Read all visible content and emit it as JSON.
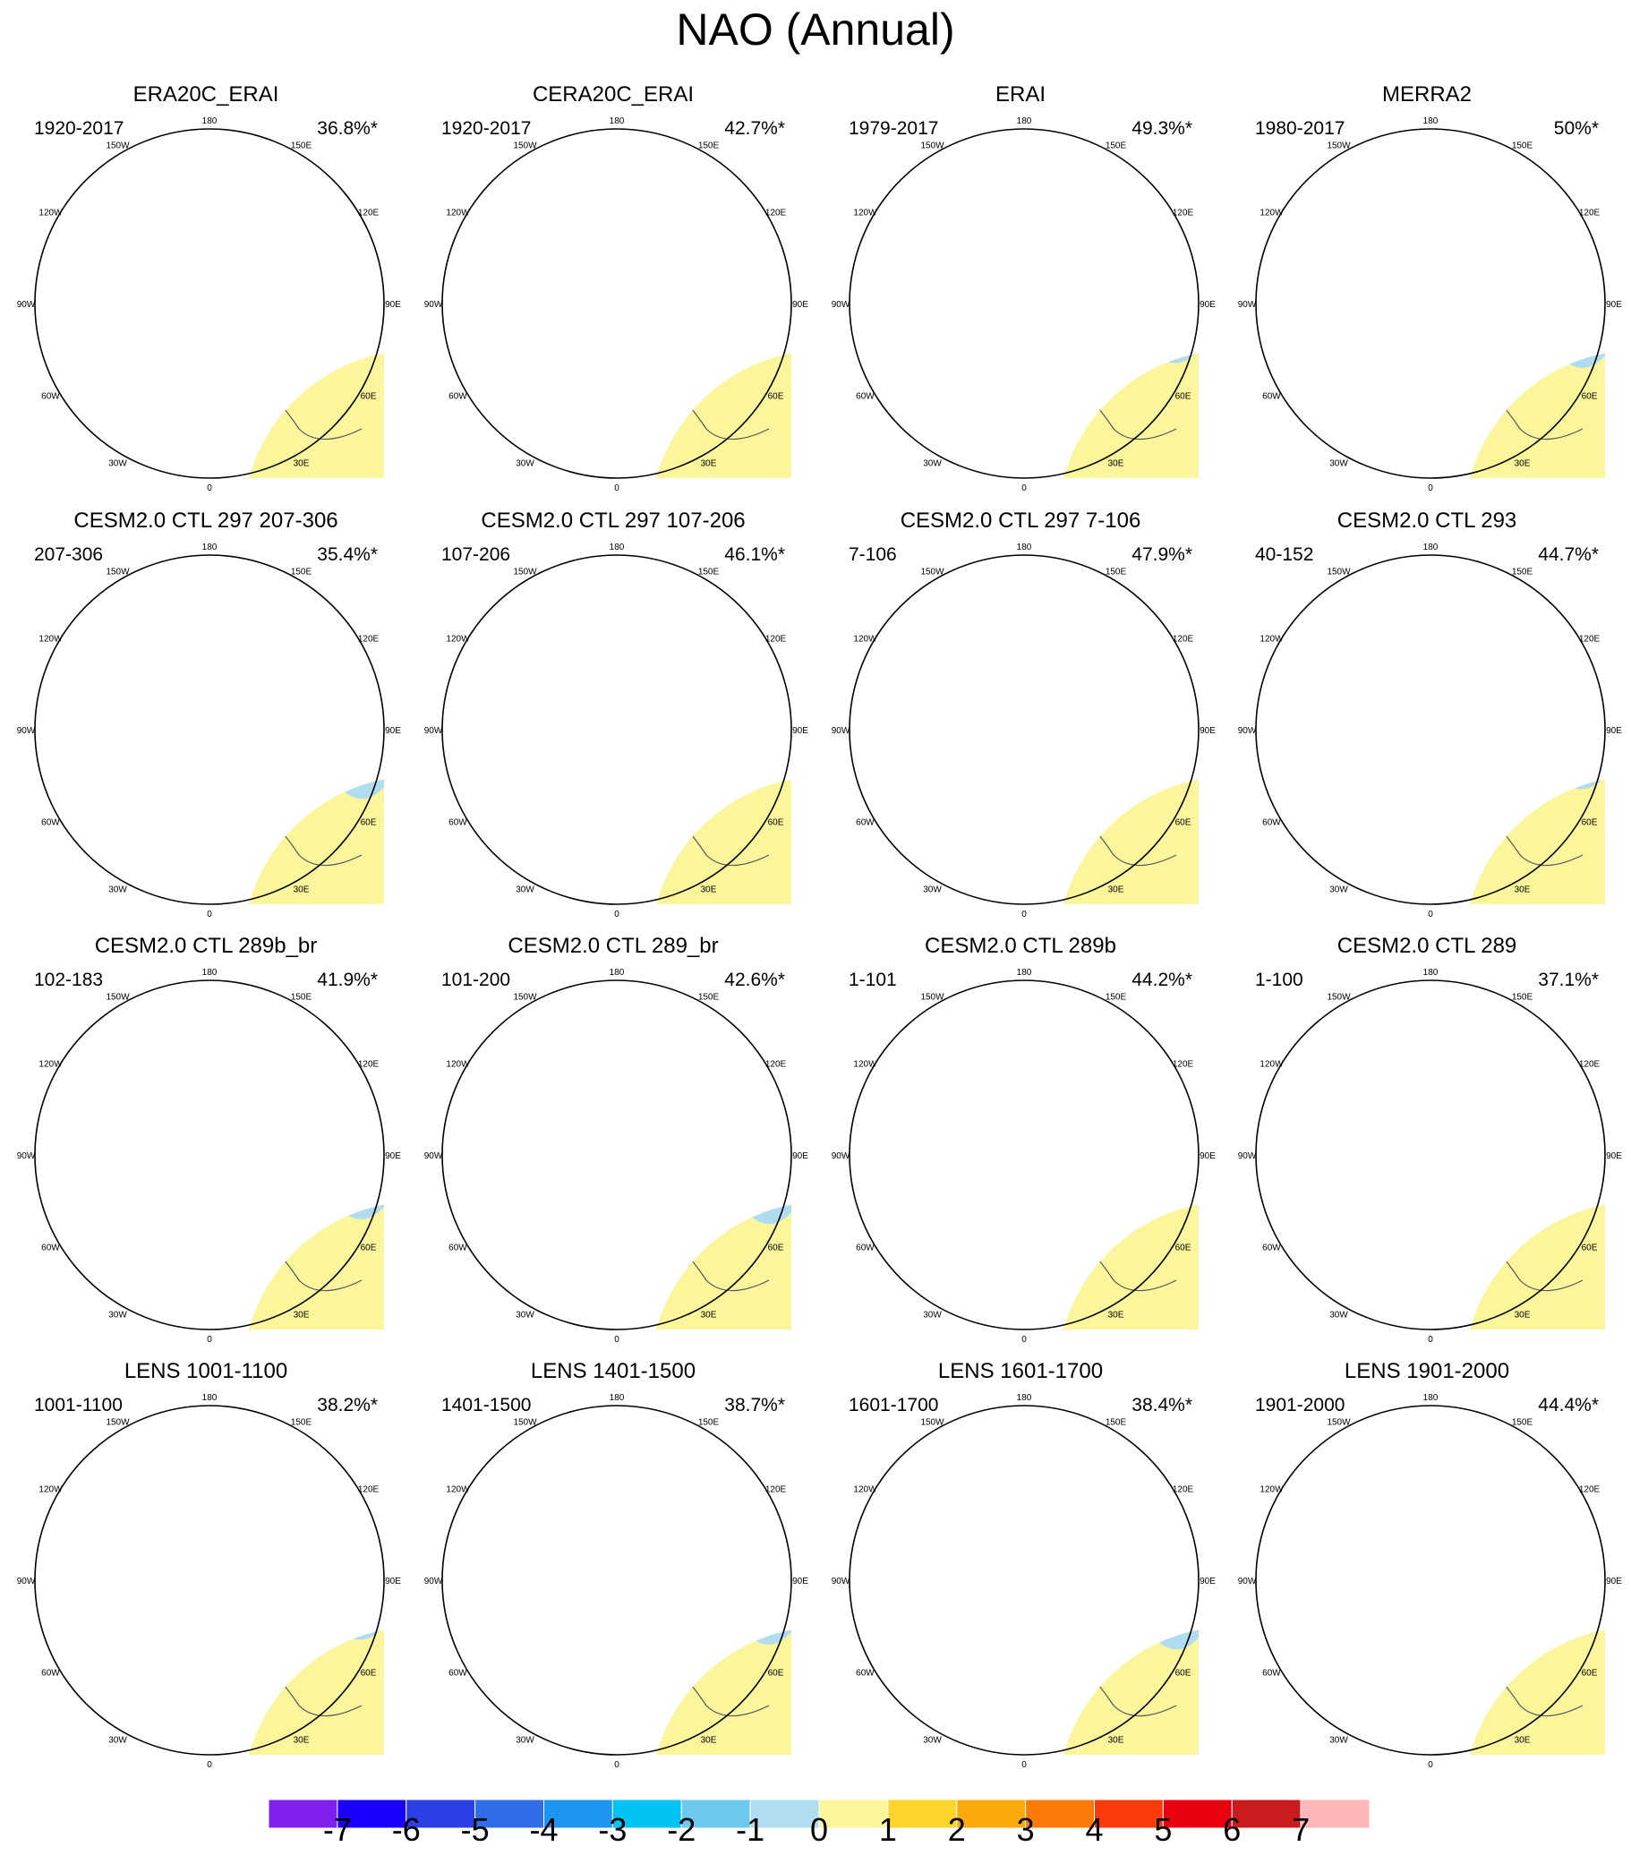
{
  "title": "NAO (Annual)",
  "lon_labels": [
    "180",
    "150E",
    "120E",
    "90E",
    "60E",
    "30E",
    "0",
    "30W",
    "60W",
    "90W",
    "120W",
    "150W"
  ],
  "panels": [
    {
      "title": "ERA20C_ERAI",
      "period": "1920-2017",
      "variance": "36.8%*"
    },
    {
      "title": "CERA20C_ERAI",
      "period": "1920-2017",
      "variance": "42.7%*"
    },
    {
      "title": "ERAI",
      "period": "1979-2017",
      "variance": "49.3%*"
    },
    {
      "title": "MERRA2",
      "period": "1980-2017",
      "variance": "50%*"
    },
    {
      "title": "CESM2.0 CTL 297 207-306",
      "period": "207-306",
      "variance": "35.4%*"
    },
    {
      "title": "CESM2.0 CTL 297 107-206",
      "period": "107-206",
      "variance": "46.1%*"
    },
    {
      "title": "CESM2.0 CTL 297 7-106",
      "period": "7-106",
      "variance": "47.9%*"
    },
    {
      "title": "CESM2.0 CTL 293",
      "period": "40-152",
      "variance": "44.7%*"
    },
    {
      "title": "CESM2.0 CTL 289b_br",
      "period": "102-183",
      "variance": "41.9%*"
    },
    {
      "title": "CESM2.0 CTL 289_br",
      "period": "101-200",
      "variance": "42.6%*"
    },
    {
      "title": "CESM2.0 CTL 289b",
      "period": "1-101",
      "variance": "44.2%*"
    },
    {
      "title": "CESM2.0 CTL 289",
      "period": "1-100",
      "variance": "37.1%*"
    },
    {
      "title": "LENS 1001-1100",
      "period": "1001-1100",
      "variance": "38.2%*"
    },
    {
      "title": "LENS 1401-1500",
      "period": "1401-1500",
      "variance": "38.7%*"
    },
    {
      "title": "LENS 1601-1700",
      "period": "1601-1700",
      "variance": "38.4%*"
    },
    {
      "title": "LENS 1901-2000",
      "period": "1901-2000",
      "variance": "44.4%*"
    }
  ],
  "colorbar": {
    "ticks": [
      "-7",
      "-6",
      "-5",
      "-4",
      "-3",
      "-2",
      "-1",
      "0",
      "1",
      "2",
      "3",
      "4",
      "5",
      "6",
      "7"
    ],
    "colors": [
      "#7f1ff0",
      "#1a00ff",
      "#2a3fe6",
      "#2f6ee8",
      "#1f95f2",
      "#00c2f5",
      "#6ec9f0",
      "#b0dcf2",
      "#fbf59c",
      "#fdd42a",
      "#fbaa0a",
      "#fb7a0a",
      "#fb3a0a",
      "#e8000f",
      "#cc1b1f",
      "#ffb6b8"
    ]
  },
  "palette": {
    "ocean_ring": "#b0dcf2",
    "land_base": "#fbf59c",
    "neg2": "#6ec9f0",
    "neg3": "#00c2f5",
    "pos2": "#fdd42a"
  }
}
